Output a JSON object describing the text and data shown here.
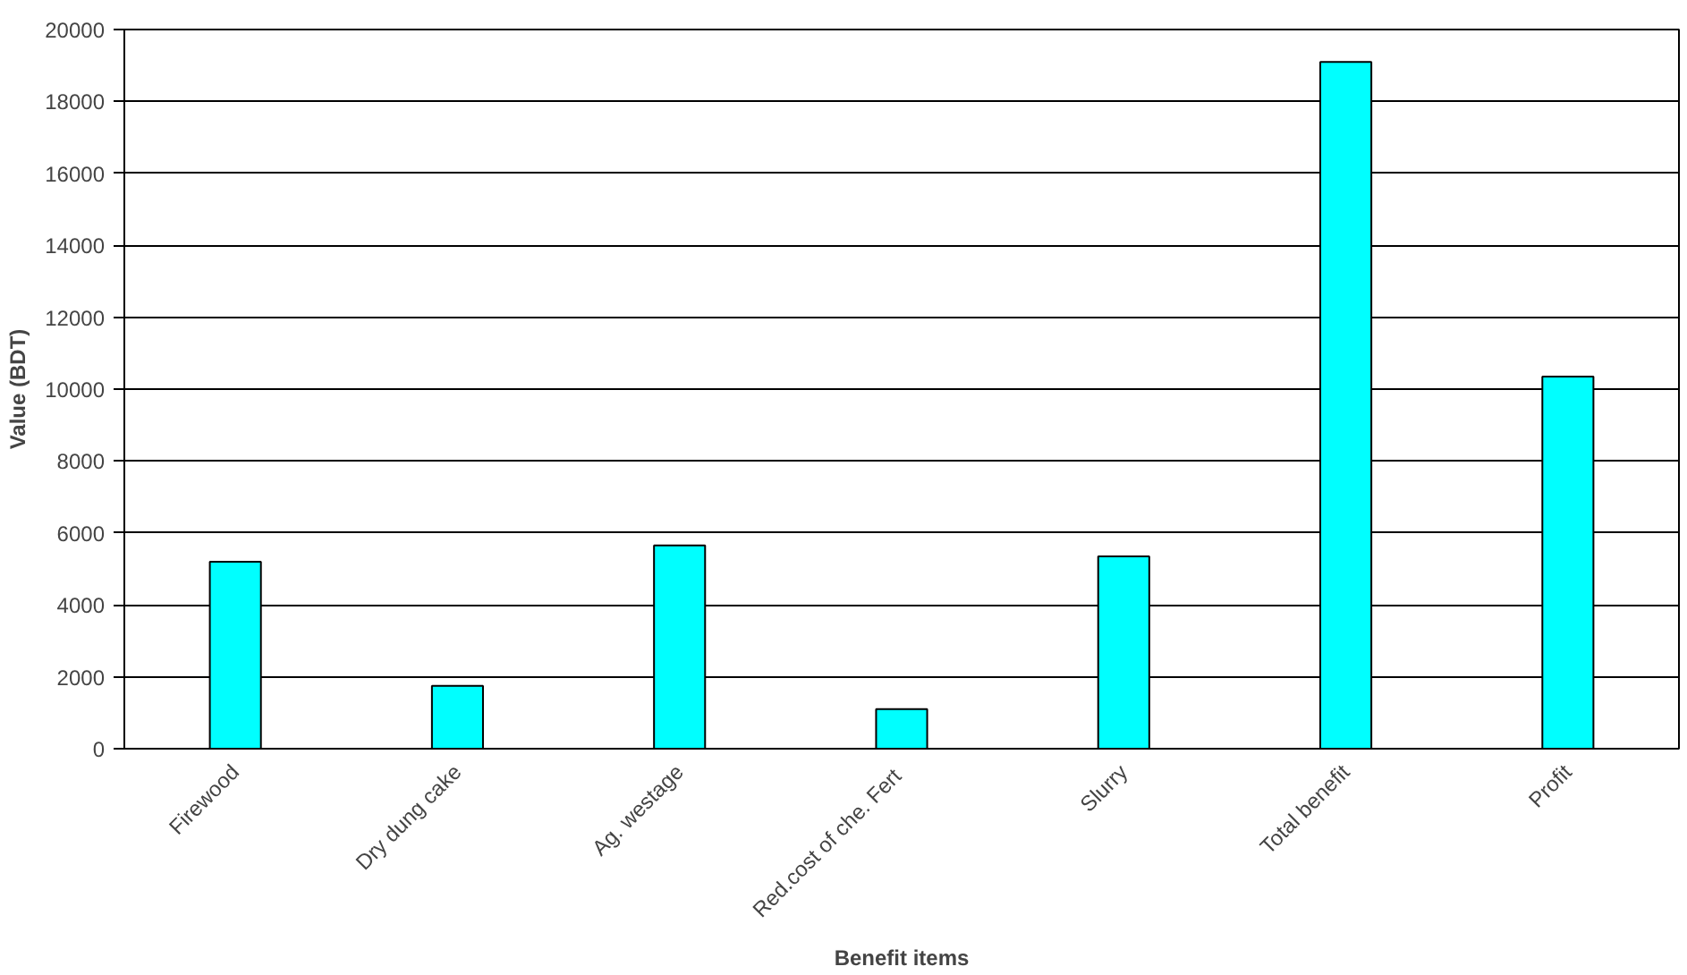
{
  "chart_data": {
    "type": "bar",
    "xlabel": "Benefit items",
    "ylabel": "Value (BDT)",
    "categories": [
      "Firewood",
      "Dry dung cake",
      "Ag. westage",
      "Red.cost of  che. Fert",
      "Slurry",
      "Total benefit",
      "Profit"
    ],
    "values": [
      5200,
      1750,
      5650,
      1100,
      5350,
      19100,
      10350
    ],
    "color": "#00ffff",
    "ylim": [
      0,
      20000
    ],
    "yticks": [
      0,
      2000,
      4000,
      6000,
      8000,
      10000,
      12000,
      14000,
      16000,
      18000,
      20000
    ],
    "grid": "y"
  }
}
